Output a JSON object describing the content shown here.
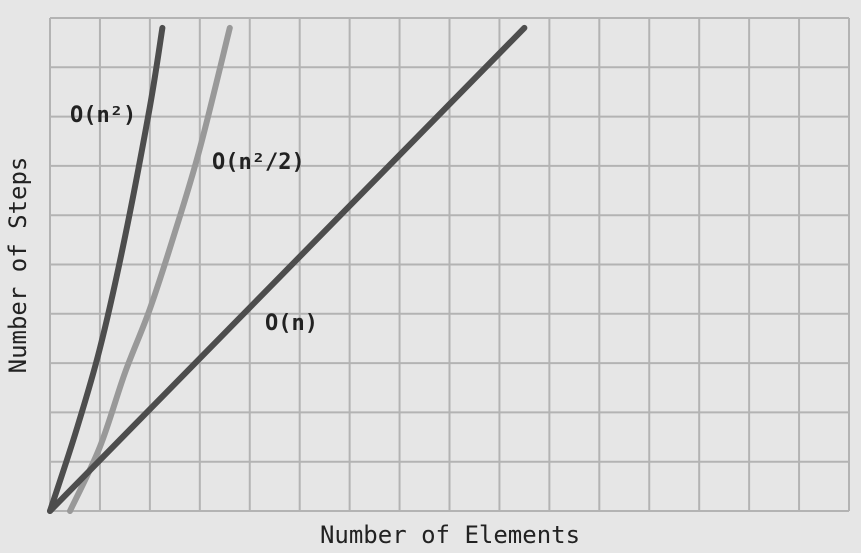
{
  "chart_data": {
    "type": "line",
    "title": "",
    "xlabel": "Number of Elements",
    "ylabel": "Number of Steps",
    "xlim": [
      0,
      16
    ],
    "ylim": [
      0,
      10
    ],
    "grid": true,
    "x_ticks": [
      1,
      2,
      3,
      4,
      5,
      6,
      7,
      8,
      9,
      10,
      11,
      12,
      13,
      14,
      15,
      16
    ],
    "y_ticks": [
      1,
      2,
      3,
      4,
      5,
      6,
      7,
      8,
      9,
      10
    ],
    "series": [
      {
        "name": "O(n²)",
        "label": "O(n²)",
        "color": "#4d4d4d",
        "x": [
          0,
          0.5,
          1,
          1.5,
          2,
          2.25
        ],
        "y": [
          0,
          1.55,
          3.3,
          5.55,
          8.2,
          9.8
        ]
      },
      {
        "name": "O(n²/2)",
        "label": "O(n²/2)",
        "color": "#999999",
        "x": [
          0.4,
          1,
          1.5,
          2,
          2.5,
          3,
          3.6
        ],
        "y": [
          0,
          1.3,
          2.8,
          4.1,
          5.65,
          7.35,
          9.8
        ]
      },
      {
        "name": "O(n)",
        "label": "O(n)",
        "color": "#4d4d4d",
        "x": [
          0,
          9.5
        ],
        "y": [
          0,
          9.8
        ]
      }
    ]
  }
}
